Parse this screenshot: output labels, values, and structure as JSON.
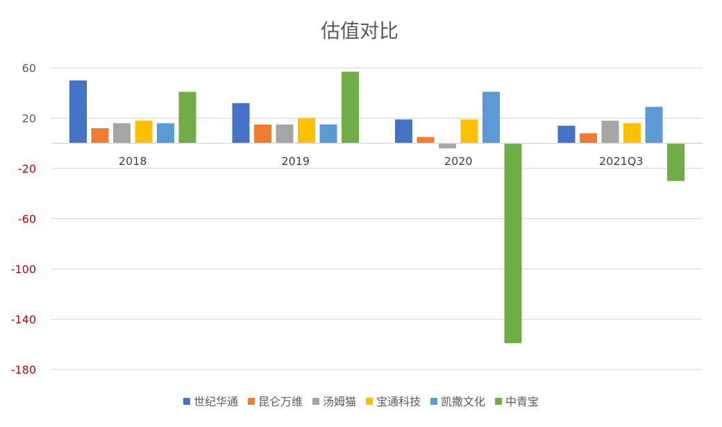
{
  "chart_data": {
    "type": "bar",
    "title": "估值对比",
    "xlabel": "",
    "ylabel": "",
    "categories": [
      "2018",
      "2019",
      "2020",
      "2021Q3"
    ],
    "ylim": [
      -180,
      60
    ],
    "yticks": [
      60,
      20,
      -20,
      -60,
      -100,
      -140,
      -180
    ],
    "grid": true,
    "legend_position": "bottom",
    "colors": {
      "positive_tick": "#595959",
      "negative_tick": "#c00000",
      "grid": "#d9d9d9",
      "title": "#595959",
      "category_label": "#404040"
    },
    "series": [
      {
        "name": "世纪华通",
        "color": "#4472c4",
        "values": [
          50,
          32,
          19,
          14
        ]
      },
      {
        "name": "昆仑万维",
        "color": "#ed7d31",
        "values": [
          12,
          15,
          5,
          8
        ]
      },
      {
        "name": "汤姆猫",
        "color": "#a5a5a5",
        "values": [
          16,
          15,
          -4,
          18
        ]
      },
      {
        "name": "宝通科技",
        "color": "#ffc000",
        "values": [
          18,
          20,
          19,
          16
        ]
      },
      {
        "name": "凯撒文化",
        "color": "#5b9bd5",
        "values": [
          16,
          15,
          41,
          29
        ]
      },
      {
        "name": "中青宝",
        "color": "#70ad47",
        "values": [
          41,
          57,
          -159,
          -30
        ]
      }
    ]
  }
}
